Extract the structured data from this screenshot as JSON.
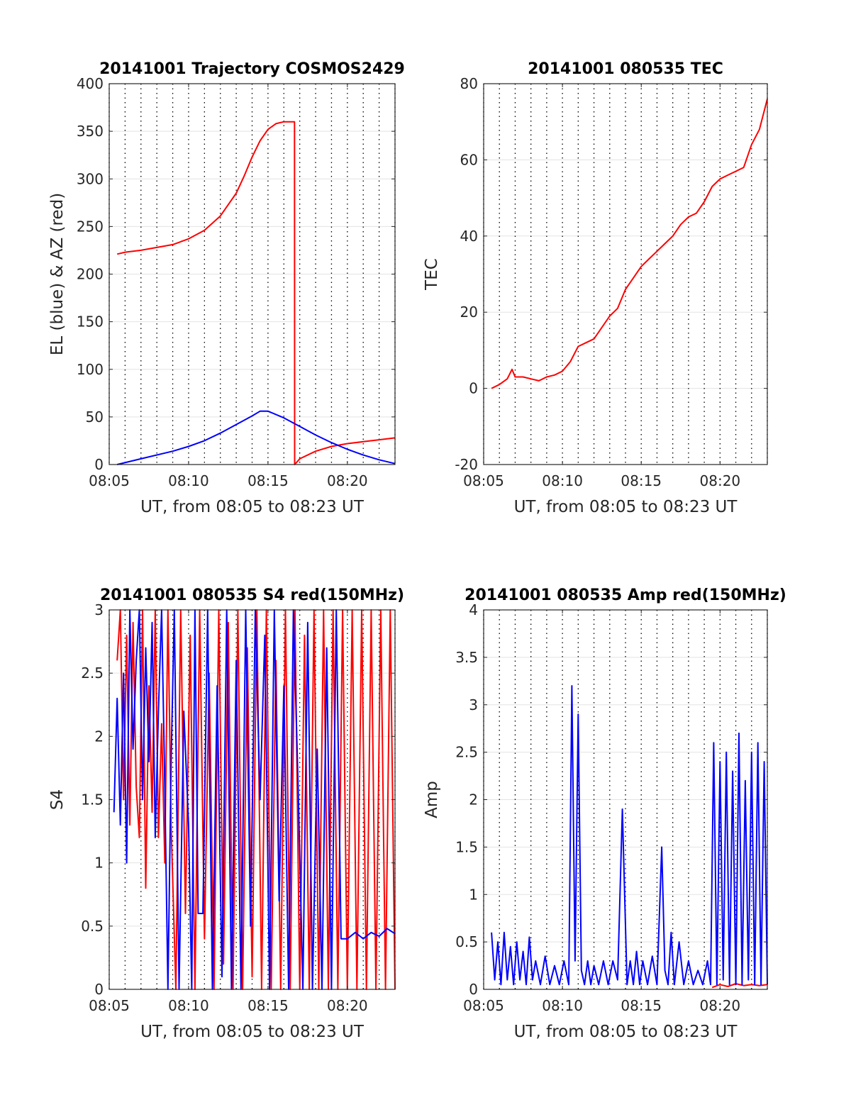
{
  "chart_data": [
    {
      "type": "line",
      "title": "20141001 Trajectory COSMOS2429",
      "xlabel": "UT, from 08:05 to 08:23 UT",
      "ylabel": "EL (blue) & AZ (red)",
      "xlim": [
        0,
        18
      ],
      "ylim": [
        0,
        400
      ],
      "xticks": [
        0,
        5,
        10,
        15
      ],
      "xticklabels": [
        "08:05",
        "08:10",
        "08:15",
        "08:20"
      ],
      "yticks": [
        0,
        50,
        100,
        150,
        200,
        250,
        300,
        350,
        400
      ],
      "yticklabels": [
        "0",
        "50",
        "100",
        "150",
        "200",
        "250",
        "300",
        "350",
        "400"
      ],
      "grid": true,
      "series": [
        {
          "color": "#ff0000",
          "x": [
            0.5,
            1,
            2,
            3,
            4,
            5,
            6,
            7,
            8,
            8.5,
            9,
            9.5,
            10,
            10.5,
            11,
            11.5,
            11.67,
            11.68,
            12,
            13,
            14,
            15,
            16,
            17,
            18
          ],
          "y": [
            221,
            223,
            225,
            228,
            231,
            237,
            246,
            261,
            285,
            303,
            323,
            340,
            352,
            358,
            360,
            360,
            360,
            0,
            6,
            14,
            19,
            22,
            24,
            26,
            28
          ]
        },
        {
          "color": "#0000ff",
          "x": [
            0.5,
            2,
            4,
            5,
            6,
            7,
            8,
            9,
            9.5,
            10,
            11,
            12,
            13,
            14,
            15,
            16,
            17,
            18
          ],
          "y": [
            0,
            6,
            14,
            19,
            25,
            33,
            42,
            51,
            56,
            56,
            49,
            40,
            31,
            23,
            16,
            10,
            5,
            1
          ]
        }
      ]
    },
    {
      "type": "line",
      "title": "20141001 080535 TEC",
      "xlabel": "UT, from 08:05 to 08:23 UT",
      "ylabel": "TEC",
      "xlim": [
        0,
        18
      ],
      "ylim": [
        -20,
        80
      ],
      "xticks": [
        0,
        5,
        10,
        15
      ],
      "xticklabels": [
        "08:05",
        "08:10",
        "08:15",
        "08:20"
      ],
      "yticks": [
        -20,
        0,
        20,
        40,
        60,
        80
      ],
      "yticklabels": [
        "-20",
        "0",
        "20",
        "40",
        "60",
        "80"
      ],
      "grid": true,
      "series": [
        {
          "color": "#ff0000",
          "x": [
            0.5,
            1,
            1.5,
            1.8,
            2,
            2.5,
            3,
            3.5,
            4,
            4.5,
            5,
            5.5,
            6,
            6.5,
            7,
            7.5,
            8,
            8.5,
            9,
            9.5,
            10,
            10.5,
            11,
            11.5,
            12,
            12.5,
            13,
            13.5,
            14,
            14.5,
            15,
            15.5,
            16,
            16.5,
            17,
            17.5,
            18
          ],
          "y": [
            0,
            1,
            2.5,
            5,
            3,
            3,
            2.5,
            2,
            3,
            3.5,
            4.5,
            7,
            11,
            12,
            13,
            16,
            19,
            21,
            26,
            29,
            32,
            34,
            36,
            38,
            40,
            43,
            45,
            46,
            49,
            53,
            55,
            56,
            57,
            58,
            64,
            68,
            76
          ]
        }
      ]
    },
    {
      "type": "line",
      "title": "20141001 080535 S4 red(150MHz)",
      "xlabel": "UT, from 08:05 to 08:23 UT",
      "ylabel": "S4",
      "xlim": [
        0,
        18
      ],
      "ylim": [
        0,
        3
      ],
      "xticks": [
        0,
        5,
        10,
        15
      ],
      "xticklabels": [
        "08:05",
        "08:10",
        "08:15",
        "08:20"
      ],
      "yticks": [
        0,
        0.5,
        1,
        1.5,
        2,
        2.5,
        3
      ],
      "yticklabels": [
        "0",
        "0.5",
        "1",
        "1.5",
        "2",
        "2.5",
        "3"
      ],
      "grid": true,
      "series": [
        {
          "color": "#ff0000",
          "x": [
            0.5,
            0.7,
            0.9,
            1.1,
            1.3,
            1.5,
            1.7,
            1.9,
            2.1,
            2.3,
            2.5,
            2.7,
            2.9,
            3.1,
            3.3,
            3.5,
            3.7,
            3.9,
            4.2,
            4.5,
            4.8,
            5.1,
            5.4,
            5.7,
            6.0,
            6.3,
            6.6,
            6.9,
            7.2,
            7.5,
            7.8,
            8.1,
            8.4,
            8.7,
            9.0,
            9.3,
            9.6,
            9.9,
            10.2,
            10.5,
            10.8,
            11.1,
            11.4,
            11.7,
            12.0,
            12.3,
            12.6,
            12.9,
            13.2,
            13.5,
            13.8,
            14.1,
            14.4,
            14.7,
            15.0,
            15.3,
            15.6,
            15.9,
            16.2,
            16.5,
            16.8,
            17.1,
            17.4,
            17.7,
            18.0
          ],
          "y": [
            2.6,
            3.0,
            1.5,
            2.8,
            1.3,
            2.9,
            1.6,
            1.2,
            3.0,
            0.8,
            2.4,
            1.4,
            3.0,
            1.2,
            2.1,
            1.0,
            3.0,
            1.3,
            0.0,
            3.0,
            0.6,
            2.8,
            0.0,
            3.0,
            0.4,
            2.5,
            0.0,
            3.0,
            0.2,
            2.9,
            0.0,
            3.0,
            0.0,
            2.7,
            0.1,
            3.0,
            0.0,
            3.0,
            0.0,
            2.6,
            0.0,
            3.0,
            0.0,
            3.0,
            0.0,
            2.8,
            0.0,
            3.0,
            0.0,
            3.0,
            0.0,
            3.0,
            0.0,
            3.0,
            0.0,
            3.0,
            0.0,
            3.0,
            0.0,
            3.0,
            0.0,
            3.0,
            0.0,
            3.0,
            0.0
          ]
        },
        {
          "color": "#0000ff",
          "x": [
            0.3,
            0.5,
            0.7,
            0.9,
            1.1,
            1.3,
            1.5,
            1.7,
            1.9,
            2.1,
            2.3,
            2.5,
            2.7,
            2.9,
            3.1,
            3.3,
            3.5,
            3.7,
            3.9,
            4.1,
            4.4,
            4.7,
            5.0,
            5.2,
            5.4,
            5.6,
            5.9,
            6.2,
            6.5,
            6.8,
            7.1,
            7.4,
            7.7,
            8.0,
            8.3,
            8.6,
            8.9,
            9.2,
            9.5,
            9.8,
            10.1,
            10.4,
            10.7,
            11.0,
            11.3,
            11.6,
            11.9,
            12.2,
            12.5,
            12.8,
            13.1,
            13.4,
            13.7,
            14.0,
            14.3,
            14.6,
            15.0,
            15.5,
            16.0,
            16.5,
            17.0,
            17.5,
            18.0
          ],
          "y": [
            1.4,
            2.3,
            1.3,
            2.5,
            1.0,
            3.0,
            1.9,
            2.6,
            3.0,
            1.5,
            2.7,
            1.8,
            2.9,
            1.2,
            2.2,
            3.0,
            1.6,
            0.0,
            1.8,
            3.0,
            0.0,
            2.2,
            1.3,
            0.0,
            3.0,
            0.6,
            0.6,
            3.0,
            0.0,
            2.4,
            0.1,
            3.0,
            0.0,
            2.6,
            0.0,
            3.0,
            0.5,
            3.0,
            1.5,
            2.8,
            0.0,
            3.0,
            0.7,
            2.4,
            0.0,
            3.0,
            1.6,
            0.0,
            2.9,
            0.0,
            1.9,
            0.0,
            2.7,
            0.0,
            3.0,
            0.4,
            0.4,
            0.45,
            0.4,
            0.45,
            0.42,
            0.48,
            0.44
          ]
        }
      ]
    },
    {
      "type": "line",
      "title": "20141001 080535 Amp red(150MHz)",
      "xlabel": "UT, from 08:05 to 08:23 UT",
      "ylabel": "Amp",
      "xlim": [
        0,
        18
      ],
      "ylim": [
        0,
        4
      ],
      "xticks": [
        0,
        5,
        10,
        15
      ],
      "xticklabels": [
        "08:05",
        "08:10",
        "08:15",
        "08:20"
      ],
      "yticks": [
        0,
        0.5,
        1,
        1.5,
        2,
        2.5,
        3,
        3.5,
        4
      ],
      "yticklabels": [
        "0",
        "0.5",
        "1",
        "1.5",
        "2",
        "2.5",
        "3",
        "3.5",
        "4"
      ],
      "grid": true,
      "series": [
        {
          "color": "#ff0000",
          "x": [
            14.5,
            15,
            15.5,
            16,
            16.5,
            17,
            17.5,
            18
          ],
          "y": [
            0.02,
            0.05,
            0.03,
            0.06,
            0.04,
            0.05,
            0.04,
            0.05
          ]
        },
        {
          "color": "#0000ff",
          "x": [
            0.5,
            0.7,
            0.9,
            1.1,
            1.3,
            1.5,
            1.7,
            1.9,
            2.1,
            2.3,
            2.5,
            2.7,
            2.9,
            3.1,
            3.3,
            3.6,
            3.9,
            4.2,
            4.5,
            4.8,
            5.1,
            5.4,
            5.6,
            5.8,
            6.0,
            6.2,
            6.4,
            6.6,
            6.8,
            7.0,
            7.3,
            7.6,
            7.9,
            8.2,
            8.5,
            8.8,
            9.1,
            9.3,
            9.5,
            9.7,
            9.9,
            10.1,
            10.4,
            10.7,
            11.0,
            11.3,
            11.5,
            11.7,
            11.9,
            12.1,
            12.4,
            12.7,
            13.0,
            13.3,
            13.6,
            13.9,
            14.2,
            14.4,
            14.6,
            14.8,
            15.0,
            15.2,
            15.4,
            15.6,
            15.8,
            16.0,
            16.2,
            16.4,
            16.6,
            16.8,
            17.0,
            17.2,
            17.4,
            17.6,
            17.8,
            18.0
          ],
          "y": [
            0.6,
            0.1,
            0.5,
            0.05,
            0.6,
            0.1,
            0.45,
            0.05,
            0.5,
            0.1,
            0.4,
            0.05,
            0.55,
            0.1,
            0.3,
            0.05,
            0.35,
            0.05,
            0.25,
            0.05,
            0.3,
            0.05,
            3.2,
            0.3,
            2.9,
            0.2,
            0.05,
            0.3,
            0.05,
            0.25,
            0.05,
            0.3,
            0.05,
            0.3,
            0.1,
            1.9,
            0.05,
            0.3,
            0.05,
            0.4,
            0.05,
            0.3,
            0.05,
            0.35,
            0.05,
            1.5,
            0.2,
            0.05,
            0.6,
            0.05,
            0.5,
            0.05,
            0.3,
            0.05,
            0.2,
            0.05,
            0.3,
            0.05,
            2.6,
            0.05,
            2.4,
            0.1,
            2.5,
            0.05,
            2.3,
            0.05,
            2.7,
            0.05,
            2.2,
            0.1,
            2.5,
            0.05,
            2.6,
            0.05,
            2.4,
            0.05
          ]
        }
      ]
    }
  ]
}
